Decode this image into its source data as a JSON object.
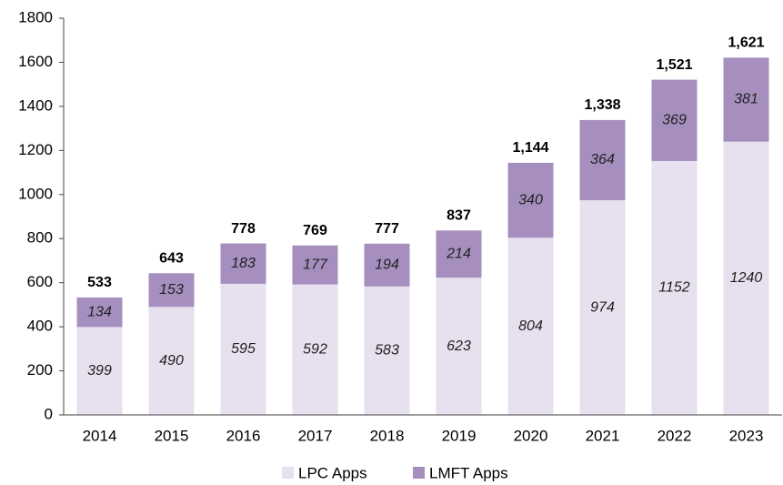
{
  "chart_data": {
    "type": "stacked_bar",
    "categories": [
      "2014",
      "2015",
      "2016",
      "2017",
      "2018",
      "2019",
      "2020",
      "2021",
      "2022",
      "2023"
    ],
    "series": [
      {
        "name": "LPC Apps",
        "color": "#e7e0ee",
        "values": [
          399,
          490,
          595,
          592,
          583,
          623,
          804,
          974,
          1152,
          1240
        ]
      },
      {
        "name": "LMFT Apps",
        "color": "#a68ebf",
        "values": [
          134,
          153,
          183,
          177,
          194,
          214,
          340,
          364,
          369,
          381
        ]
      }
    ],
    "totals": [
      533,
      643,
      778,
      769,
      777,
      837,
      1144,
      1338,
      1521,
      1621
    ],
    "total_labels": [
      "533",
      "643",
      "778",
      "769",
      "777",
      "837",
      "1,144",
      "1,338",
      "1,521",
      "1,621"
    ],
    "ylim": [
      0,
      1800
    ],
    "yticks": [
      0,
      200,
      400,
      600,
      800,
      1000,
      1200,
      1400,
      1600,
      1800
    ],
    "grid": false,
    "legend": "bottom"
  }
}
